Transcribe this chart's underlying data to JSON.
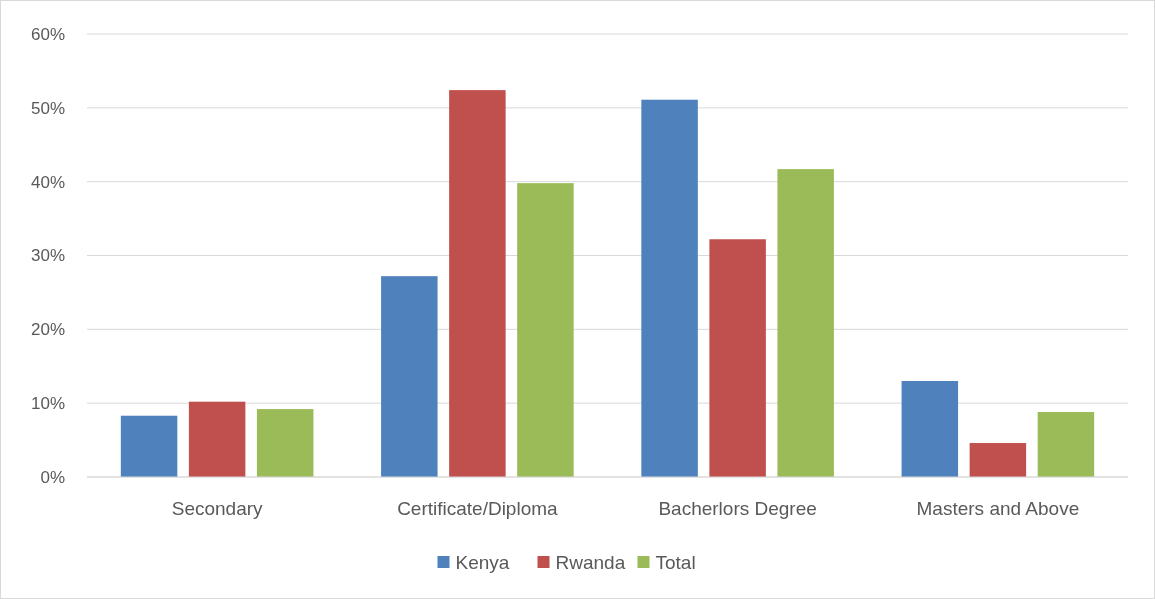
{
  "chart_data": {
    "type": "bar",
    "categories": [
      "Secondary",
      "Certificate/Diploma",
      "Bacherlors Degree",
      "Masters and Above"
    ],
    "series": [
      {
        "name": "Kenya",
        "color": "#4f81bd",
        "values": [
          8.3,
          27.2,
          51.1,
          13.0
        ]
      },
      {
        "name": "Rwanda",
        "color": "#c0504d",
        "values": [
          10.2,
          52.4,
          32.2,
          4.6
        ]
      },
      {
        "name": "Total",
        "color": "#9bbb59",
        "values": [
          9.2,
          39.8,
          41.7,
          8.8
        ]
      }
    ],
    "ylim": [
      0,
      60
    ],
    "yticks": [
      {
        "value": 0,
        "label": "0%"
      },
      {
        "value": 10,
        "label": "10%"
      },
      {
        "value": 20,
        "label": "20%"
      },
      {
        "value": 30,
        "label": "30%"
      },
      {
        "value": 40,
        "label": "40%"
      },
      {
        "value": 50,
        "label": "50%"
      },
      {
        "value": 60,
        "label": "60%"
      }
    ],
    "grid": "y",
    "legend": "bottom"
  }
}
